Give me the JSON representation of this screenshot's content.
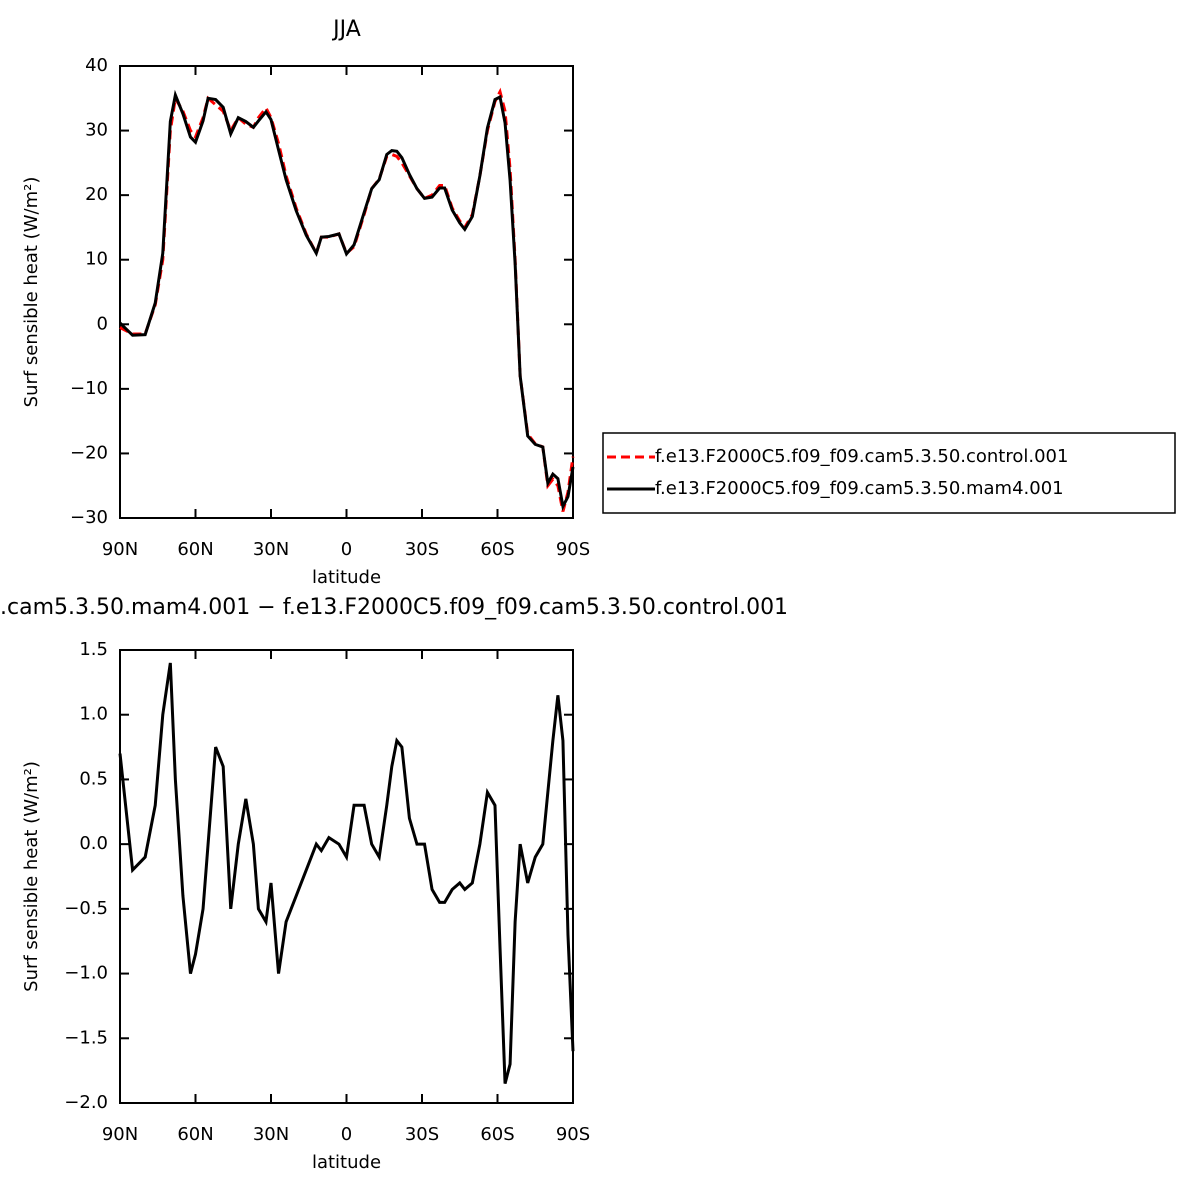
{
  "chart_data": [
    {
      "type": "line",
      "title": "JJA",
      "x_label": "latitude",
      "y_label": "Surf sensible heat (W/m²)",
      "x": [
        90,
        85,
        80,
        76,
        73,
        70,
        68,
        65,
        62,
        60,
        57,
        55,
        52,
        49,
        46,
        43,
        40,
        37,
        35,
        32,
        30,
        27,
        24,
        20,
        16,
        12,
        10,
        7,
        3,
        0,
        -3,
        -7,
        -10,
        -13,
        -16,
        -18,
        -20,
        -22,
        -25,
        -28,
        -31,
        -34,
        -37,
        -39,
        -42,
        -45,
        -47,
        -50,
        -53,
        -56,
        -59,
        -61,
        -63,
        -65,
        -67,
        -69,
        -72,
        -75,
        -78,
        -80,
        -82,
        -84,
        -86,
        -88,
        -90
      ],
      "series": [
        {
          "name": "f.e13.F2000C5.f09_f09.cam5.3.50.control.001",
          "color": "#ff0000",
          "style": "dashed",
          "values": [
            -0.5,
            -1.5,
            -1.5,
            3,
            10,
            30,
            35,
            33,
            30,
            29,
            32,
            35,
            34,
            33,
            30,
            32,
            31,
            30.5,
            32,
            33.5,
            32,
            28,
            23,
            18,
            14,
            11,
            13.5,
            13.5,
            14,
            11,
            12,
            17,
            21,
            22.5,
            26,
            26.3,
            26,
            25,
            23,
            21,
            19.5,
            20,
            21.5,
            21.5,
            18,
            16,
            15,
            17,
            23,
            30,
            34.5,
            36,
            33,
            24,
            10,
            -8,
            -17,
            -18.5,
            -19,
            -25,
            -24,
            -25,
            -29,
            -26,
            -20.5
          ]
        },
        {
          "name": "f.e13.F2000C5.f09_f09.cam5.3.50.mam4.001",
          "color": "#000000",
          "style": "solid",
          "values": [
            0.2,
            -1.7,
            -1.6,
            3.3,
            11,
            31.4,
            35.5,
            32.6,
            29,
            28.2,
            31.5,
            35,
            34.8,
            33.6,
            29.5,
            32,
            31.4,
            30.5,
            31.5,
            32.9,
            31.7,
            27,
            22.4,
            17.6,
            13.8,
            11,
            13.5,
            13.6,
            14,
            10.9,
            12.3,
            17.3,
            21,
            22.4,
            26.3,
            26.9,
            26.8,
            25.8,
            23.2,
            21,
            19.5,
            19.7,
            21.1,
            21.1,
            17.7,
            15.7,
            14.7,
            16.7,
            23,
            30.4,
            34.8,
            35.2,
            31.2,
            22.3,
            9.4,
            -8,
            -17.3,
            -18.6,
            -19,
            -24.6,
            -23.2,
            -23.9,
            -28.2,
            -26.7,
            -22.1
          ]
        }
      ],
      "xlim": [
        90,
        -90
      ],
      "xticks": [
        {
          "value": 90,
          "label": "90N"
        },
        {
          "value": 60,
          "label": "60N"
        },
        {
          "value": 30,
          "label": "30N"
        },
        0,
        {
          "value": -30,
          "label": "30S"
        },
        {
          "value": -60,
          "label": "60S"
        },
        {
          "value": -90,
          "label": "90S"
        }
      ],
      "ylim": [
        -30,
        40
      ],
      "yticks": [
        {
          "value": -30,
          "label": "−30"
        },
        {
          "value": -20,
          "label": "−20"
        },
        {
          "value": -10,
          "label": "−10"
        },
        0,
        10,
        20,
        30,
        40
      ],
      "legend": "outside-right"
    },
    {
      "type": "line",
      "title": ".cam5.3.50.mam4.001 − f.e13.F2000C5.f09_f09.cam5.3.50.control.001",
      "x_label": "latitude",
      "y_label": "Surf sensible heat (W/m²)",
      "x": [
        90,
        85,
        80,
        76,
        73,
        70,
        68,
        65,
        62,
        60,
        57,
        55,
        52,
        49,
        46,
        43,
        40,
        37,
        35,
        32,
        30,
        27,
        24,
        20,
        16,
        12,
        10,
        7,
        3,
        0,
        -3,
        -7,
        -10,
        -13,
        -16,
        -18,
        -20,
        -22,
        -25,
        -28,
        -31,
        -34,
        -37,
        -39,
        -42,
        -45,
        -47,
        -50,
        -53,
        -56,
        -59,
        -61,
        -63,
        -65,
        -67,
        -69,
        -72,
        -75,
        -78,
        -80,
        -82,
        -84,
        -86,
        -88,
        -90
      ],
      "series": [
        {
          "color": "#000000",
          "style": "solid",
          "values": [
            0.7,
            -0.2,
            -0.1,
            0.3,
            1.0,
            1.4,
            0.5,
            -0.4,
            -1.0,
            -0.85,
            -0.5,
            0.0,
            0.75,
            0.6,
            -0.5,
            0.0,
            0.35,
            0.0,
            -0.5,
            -0.6,
            -0.3,
            -1.0,
            -0.6,
            -0.4,
            -0.2,
            0.0,
            -0.05,
            0.05,
            0.0,
            -0.1,
            0.3,
            0.3,
            0.0,
            -0.1,
            0.3,
            0.6,
            0.8,
            0.75,
            0.2,
            0.0,
            0.0,
            -0.35,
            -0.45,
            -0.45,
            -0.35,
            -0.3,
            -0.35,
            -0.3,
            0.0,
            0.4,
            0.3,
            -0.8,
            -1.85,
            -1.7,
            -0.6,
            0.0,
            -0.3,
            -0.1,
            0.0,
            0.4,
            0.8,
            1.15,
            0.8,
            -0.7,
            -1.6
          ]
        }
      ],
      "xlim": [
        90,
        -90
      ],
      "xticks": [
        {
          "value": 90,
          "label": "90N"
        },
        {
          "value": 60,
          "label": "60N"
        },
        {
          "value": 30,
          "label": "30N"
        },
        0,
        {
          "value": -30,
          "label": "30S"
        },
        {
          "value": -60,
          "label": "60S"
        },
        {
          "value": -90,
          "label": "90S"
        }
      ],
      "ylim": [
        -2.0,
        1.5
      ],
      "yticks": [
        {
          "value": -2.0,
          "label": "−2.0"
        },
        {
          "value": -1.5,
          "label": "−1.5"
        },
        {
          "value": -1.0,
          "label": "−1.0"
        },
        {
          "value": -0.5,
          "label": "−0.5"
        },
        {
          "value": 0,
          "label": "0.0"
        },
        {
          "value": 0.5,
          "label": "0.5"
        },
        {
          "value": 1.0,
          "label": "1.0"
        },
        {
          "value": 1.5,
          "label": "1.5"
        }
      ]
    }
  ]
}
